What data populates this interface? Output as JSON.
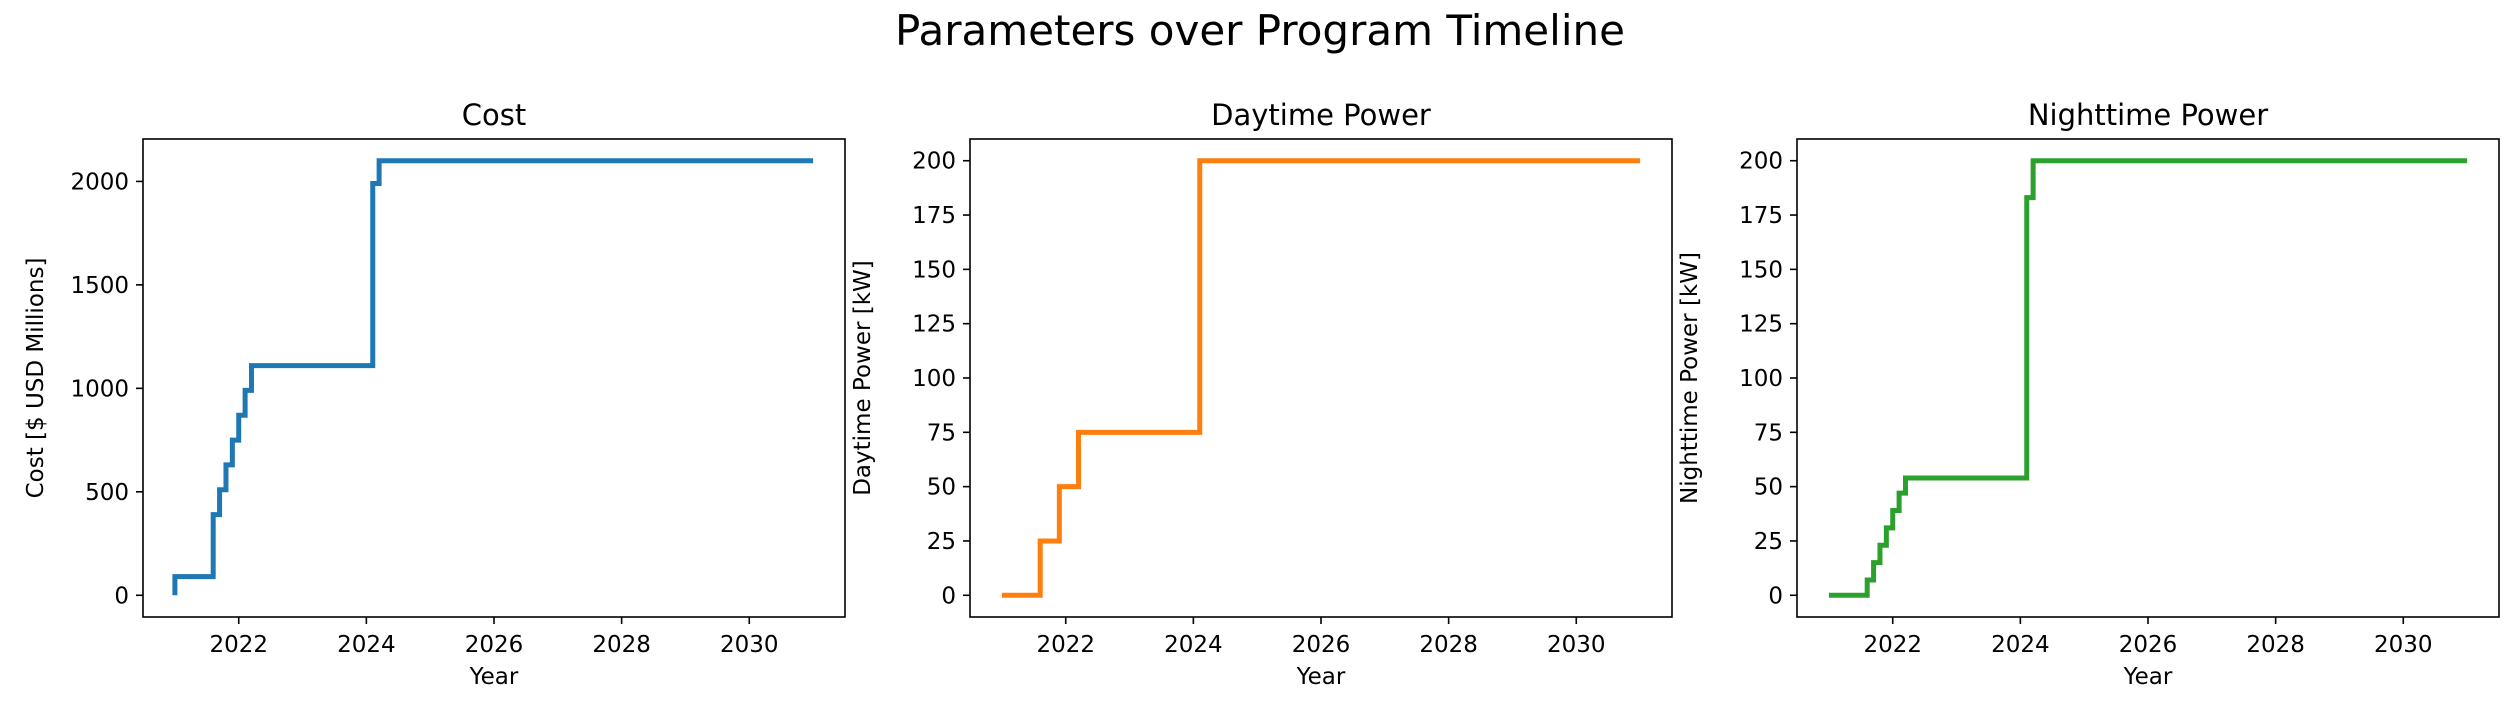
{
  "figure": {
    "suptitle": "Parameters over Program Timeline"
  },
  "chart_data": [
    {
      "type": "line",
      "title": "Cost",
      "xlabel": "Year",
      "ylabel": "Cost [$ USD Millions]",
      "color": "#1f77b4",
      "xlim": [
        2020.5,
        2031.5
      ],
      "ylim": [
        -105,
        2205
      ],
      "xticks": [
        2022,
        2024,
        2026,
        2028,
        2030
      ],
      "yticks": [
        0,
        500,
        1000,
        1500,
        2000
      ],
      "step": true,
      "grid": false,
      "series": [
        {
          "x": [
            2021.0,
            2021.0,
            2021.6,
            2021.6,
            2021.7,
            2021.7,
            2021.8,
            2021.8,
            2021.9,
            2021.9,
            2022.0,
            2022.0,
            2022.1,
            2022.1,
            2022.2,
            2022.2,
            2024.1,
            2024.1,
            2024.2,
            2024.2,
            2031.0
          ],
          "y": [
            0,
            90,
            90,
            390,
            390,
            510,
            510,
            630,
            630,
            750,
            750,
            870,
            870,
            990,
            990,
            1110,
            1110,
            1990,
            1990,
            2100,
            2100
          ]
        }
      ]
    },
    {
      "type": "line",
      "title": "Daytime Power",
      "xlabel": "Year",
      "ylabel": "Daytime Power [kW]",
      "color": "#ff7f0e",
      "xlim": [
        2020.5,
        2031.5
      ],
      "ylim": [
        -10,
        210
      ],
      "xticks": [
        2022,
        2024,
        2026,
        2028,
        2030
      ],
      "yticks": [
        0,
        25,
        50,
        75,
        100,
        125,
        150,
        175,
        200
      ],
      "step": true,
      "grid": false,
      "series": [
        {
          "x": [
            2021.0,
            2021.6,
            2021.6,
            2021.9,
            2021.9,
            2022.2,
            2022.2,
            2024.1,
            2024.1,
            2031.0
          ],
          "y": [
            0,
            0,
            25,
            25,
            50,
            50,
            75,
            75,
            200,
            200
          ]
        }
      ]
    },
    {
      "type": "line",
      "title": "Nighttime Power",
      "xlabel": "Year",
      "ylabel": "Nighttime Power [kW]",
      "color": "#2ca02c",
      "xlim": [
        2020.5,
        2031.5
      ],
      "ylim": [
        -10,
        210
      ],
      "xticks": [
        2022,
        2024,
        2026,
        2028,
        2030
      ],
      "yticks": [
        0,
        25,
        50,
        75,
        100,
        125,
        150,
        175,
        200
      ],
      "step": true,
      "grid": false,
      "series": [
        {
          "x": [
            2021.0,
            2021.6,
            2021.6,
            2021.7,
            2021.7,
            2021.8,
            2021.8,
            2021.9,
            2021.9,
            2022.0,
            2022.0,
            2022.1,
            2022.1,
            2022.2,
            2022.2,
            2024.1,
            2024.1,
            2024.2,
            2024.2,
            2031.0
          ],
          "y": [
            0,
            0,
            7,
            7,
            15,
            15,
            23,
            23,
            31,
            31,
            39,
            39,
            47,
            47,
            54,
            54,
            183,
            183,
            200,
            200
          ]
        }
      ]
    }
  ]
}
